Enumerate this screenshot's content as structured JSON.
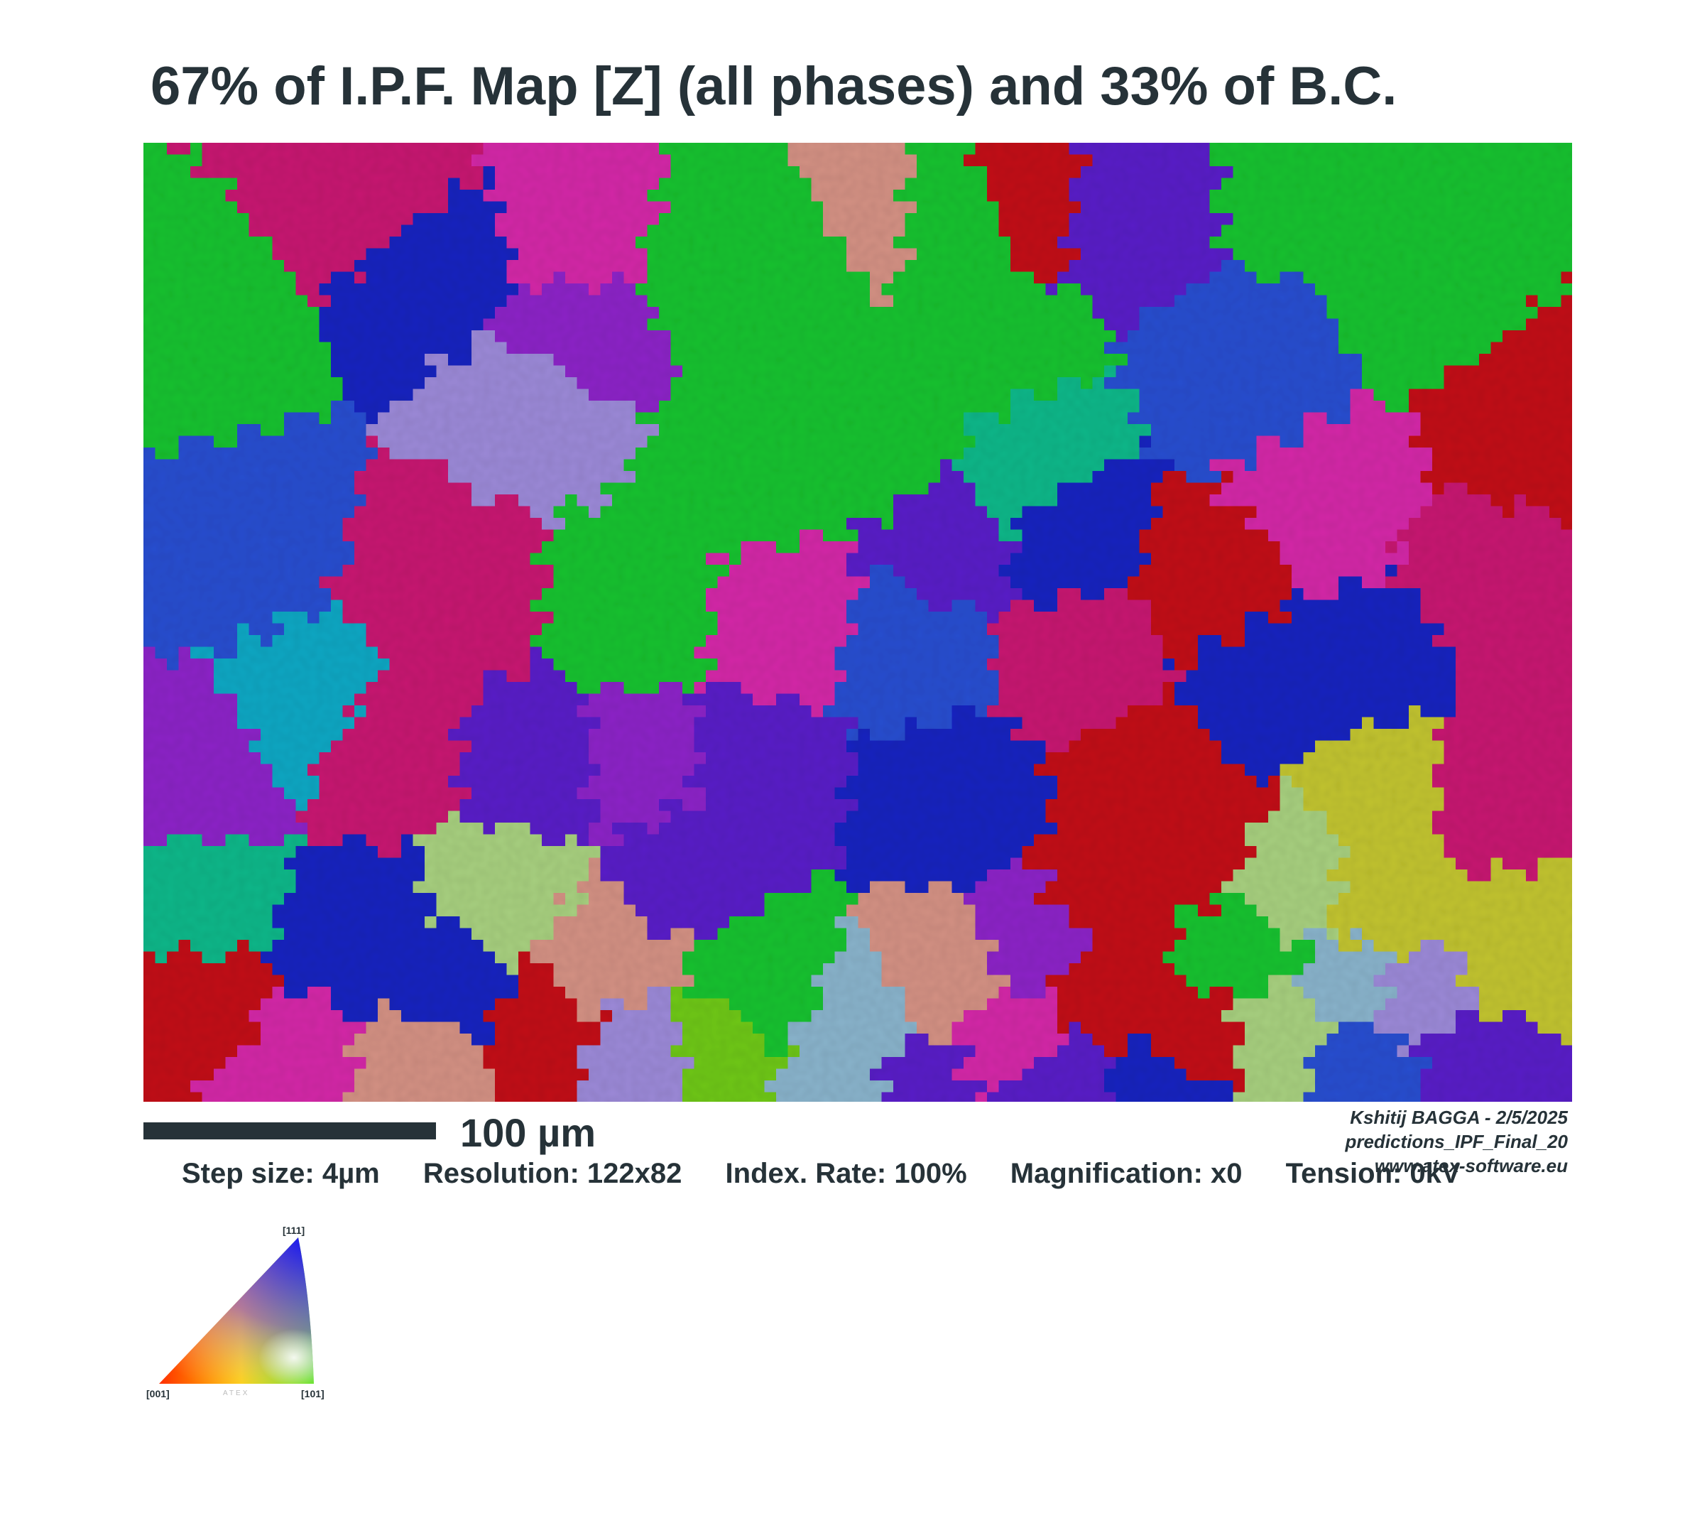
{
  "title": "67% of I.P.F. Map [Z] (all phases) and 33% of B.C.",
  "scale_bar": {
    "label": "100 µm"
  },
  "stats": {
    "step_size": "Step size: 4µm",
    "resolution": "Resolution: 122x82",
    "index_rate": "Index. Rate: 100%",
    "magnification": "Magnification: x0",
    "tension": "Tension: 0kV"
  },
  "credits": {
    "author_date": "Kshitij BAGGA - 2/5/2025",
    "file": "predictions_IPF_Final_20",
    "website": "www.atex-software.eu"
  },
  "legend": {
    "top_label": "[111]",
    "left_label": "[001]",
    "right_label": "[101]",
    "watermark": "ATEX",
    "colors": {
      "001": "#ff0000",
      "101": "#00ff00",
      "111": "#0000ff"
    }
  },
  "map": {
    "grid": "122x82",
    "colors": {
      "blue": "#1a25c0",
      "royal": "#2c4fd0",
      "violet": "#5a24c8",
      "purple": "#8d25c8",
      "magenta": "#d42aa8",
      "pink": "#c81f72",
      "red": "#c2141e",
      "green": "#1fc230",
      "lime": "#70c81a",
      "teal": "#12b88a",
      "cyan": "#18a8c4",
      "yellow": "#c2c430",
      "salmon": "#d49284",
      "lightgreen": "#a8d080",
      "lavender": "#9c8ad8",
      "grayblue": "#8ab4cc",
      "orange": "#d46a2a"
    }
  }
}
